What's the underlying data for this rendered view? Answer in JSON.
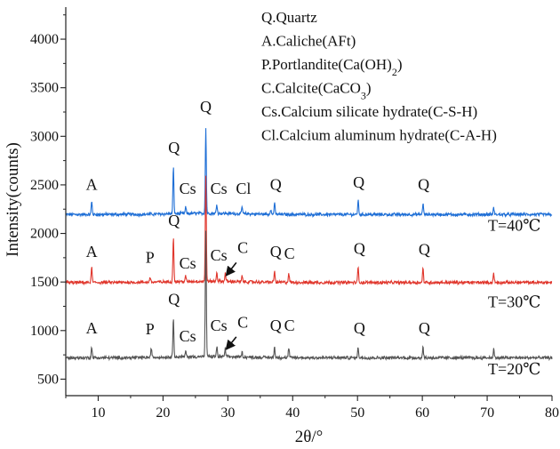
{
  "chart_data": {
    "type": "line",
    "title": "",
    "xlabel": "2θ/°",
    "ylabel": "Intensity(counts)",
    "xlim": [
      5,
      80
    ],
    "ylim": [
      330,
      4330
    ],
    "x_ticks": [
      10,
      20,
      30,
      40,
      50,
      60,
      70,
      80
    ],
    "y_ticks": [
      500,
      1000,
      1500,
      2000,
      2500,
      3000,
      3500,
      4000
    ],
    "grid": false,
    "legend_position": "top-right",
    "legend": [
      "Q.Quartz",
      "A.Caliche(AFt)",
      "P.Portlandite(Ca(OH)2)",
      "C.Calcite(CaCO3)",
      "Cs.Calcium silicate hydrate(C-S-H)",
      "Cl.Calcium aluminum hydrate(C-A-H)"
    ],
    "series": [
      {
        "name": "T=40℃",
        "color": "#1f6fd6",
        "baseline": 2195,
        "peaks": [
          {
            "x": 9.0,
            "y": 2330
          },
          {
            "x": 21.6,
            "y": 2670
          },
          {
            "x": 23.5,
            "y": 2260
          },
          {
            "x": 26.6,
            "y": 3070
          },
          {
            "x": 28.3,
            "y": 2290
          },
          {
            "x": 32.2,
            "y": 2265
          },
          {
            "x": 36.6,
            "y": 2250
          },
          {
            "x": 37.2,
            "y": 2310
          },
          {
            "x": 50.1,
            "y": 2340
          },
          {
            "x": 60.1,
            "y": 2310
          },
          {
            "x": 71.0,
            "y": 2265
          }
        ]
      },
      {
        "name": "T=30℃",
        "color": "#e0362c",
        "baseline": 1495,
        "peaks": [
          {
            "x": 9.0,
            "y": 1650
          },
          {
            "x": 18.0,
            "y": 1550
          },
          {
            "x": 21.6,
            "y": 1960
          },
          {
            "x": 23.5,
            "y": 1550
          },
          {
            "x": 26.6,
            "y": 2580
          },
          {
            "x": 28.3,
            "y": 1590
          },
          {
            "x": 29.6,
            "y": 1580
          },
          {
            "x": 32.2,
            "y": 1550
          },
          {
            "x": 37.2,
            "y": 1610
          },
          {
            "x": 39.4,
            "y": 1590
          },
          {
            "x": 50.1,
            "y": 1650
          },
          {
            "x": 60.1,
            "y": 1640
          },
          {
            "x": 71.0,
            "y": 1590
          }
        ]
      },
      {
        "name": "T=20℃",
        "color": "#555555",
        "baseline": 720,
        "peaks": [
          {
            "x": 9.0,
            "y": 830
          },
          {
            "x": 18.2,
            "y": 820
          },
          {
            "x": 21.6,
            "y": 1130
          },
          {
            "x": 23.5,
            "y": 780
          },
          {
            "x": 26.6,
            "y": 2020
          },
          {
            "x": 28.3,
            "y": 820
          },
          {
            "x": 29.6,
            "y": 800
          },
          {
            "x": 32.2,
            "y": 770
          },
          {
            "x": 37.2,
            "y": 830
          },
          {
            "x": 39.4,
            "y": 820
          },
          {
            "x": 50.1,
            "y": 830
          },
          {
            "x": 60.1,
            "y": 830
          },
          {
            "x": 71.0,
            "y": 810
          }
        ]
      }
    ],
    "peak_labels": [
      {
        "text": "A",
        "x": 9.0,
        "y": 2450
      },
      {
        "text": "Q",
        "x": 21.7,
        "y": 2830
      },
      {
        "text": "Cs",
        "x": 23.8,
        "y": 2410
      },
      {
        "text": "Q",
        "x": 26.6,
        "y": 3250
      },
      {
        "text": "Cs",
        "x": 28.6,
        "y": 2410
      },
      {
        "text": "Cl",
        "x": 32.4,
        "y": 2410
      },
      {
        "text": "Q",
        "x": 37.4,
        "y": 2450
      },
      {
        "text": "Q",
        "x": 50.2,
        "y": 2470
      },
      {
        "text": "Q",
        "x": 60.2,
        "y": 2450
      },
      {
        "text": "Q",
        "x": 21.7,
        "y": 2080
      },
      {
        "text": "A",
        "x": 9.0,
        "y": 1760
      },
      {
        "text": "P",
        "x": 18.0,
        "y": 1700
      },
      {
        "text": "Cs",
        "x": 23.8,
        "y": 1640
      },
      {
        "text": "Cs",
        "x": 28.6,
        "y": 1720
      },
      {
        "text": "C",
        "x": 32.3,
        "y": 1800
      },
      {
        "text": "Q",
        "x": 37.4,
        "y": 1760
      },
      {
        "text": "C",
        "x": 39.5,
        "y": 1740
      },
      {
        "text": "Q",
        "x": 50.3,
        "y": 1790
      },
      {
        "text": "Q",
        "x": 60.3,
        "y": 1780
      },
      {
        "text": "Q",
        "x": 21.7,
        "y": 1270
      },
      {
        "text": "A",
        "x": 9.0,
        "y": 970
      },
      {
        "text": "P",
        "x": 18.0,
        "y": 960
      },
      {
        "text": "Cs",
        "x": 23.8,
        "y": 890
      },
      {
        "text": "Cs",
        "x": 28.6,
        "y": 1000
      },
      {
        "text": "C",
        "x": 32.3,
        "y": 1030
      },
      {
        "text": "Q",
        "x": 37.4,
        "y": 1000
      },
      {
        "text": "C",
        "x": 39.5,
        "y": 1000
      },
      {
        "text": "Q",
        "x": 50.3,
        "y": 970
      },
      {
        "text": "Q",
        "x": 60.3,
        "y": 970
      }
    ],
    "arrows": [
      {
        "from": [
          31.3,
          1700
        ],
        "to": [
          29.9,
          1580
        ]
      },
      {
        "from": [
          31.3,
          935
        ],
        "to": [
          29.9,
          820
        ]
      }
    ],
    "series_labels": [
      {
        "text": "T=40℃",
        "x": 74.2,
        "y": 2030
      },
      {
        "text": "T=30℃",
        "x": 74.2,
        "y": 1240
      },
      {
        "text": "T=20℃",
        "x": 74.2,
        "y": 550
      }
    ]
  }
}
